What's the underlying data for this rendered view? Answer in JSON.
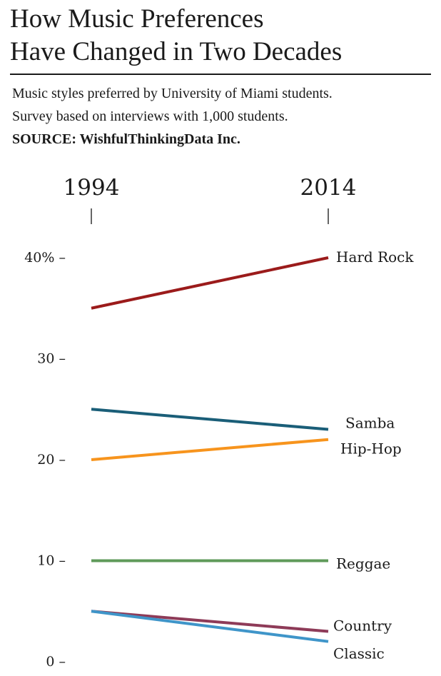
{
  "header": {
    "title_line1": "How Music Preferences",
    "title_line2": "Have Changed in Two Decades",
    "subtitle_line1": "Music styles preferred by University of Miami students.",
    "subtitle_line2": "Survey based on interviews with 1,000 students.",
    "source": "SOURCE: WishfulThinkingData Inc."
  },
  "chart_data": {
    "type": "line",
    "x": [
      "1994",
      "2014"
    ],
    "ylim": [
      0,
      40
    ],
    "y_ticks": [
      {
        "value": 40,
        "label": "40% –"
      },
      {
        "value": 30,
        "label": "30 –"
      },
      {
        "value": 20,
        "label": "20 –"
      },
      {
        "value": 10,
        "label": "10 –"
      },
      {
        "value": 0,
        "label": "0 –"
      }
    ],
    "grid": false,
    "legend": "direct labels at right end of each line",
    "series": [
      {
        "name": "Hard Rock",
        "values": [
          35,
          40
        ],
        "color": "#9b1b1b"
      },
      {
        "name": "Samba",
        "values": [
          25,
          23
        ],
        "color": "#1a5e78"
      },
      {
        "name": "Hip-Hop",
        "values": [
          20,
          22
        ],
        "color": "#f7941d"
      },
      {
        "name": "Reggae",
        "values": [
          10,
          10
        ],
        "color": "#5f9a5a"
      },
      {
        "name": "Country",
        "values": [
          5,
          3
        ],
        "color": "#8e3b58"
      },
      {
        "name": "Classic",
        "values": [
          5,
          2
        ],
        "color": "#3f95c9"
      }
    ]
  }
}
